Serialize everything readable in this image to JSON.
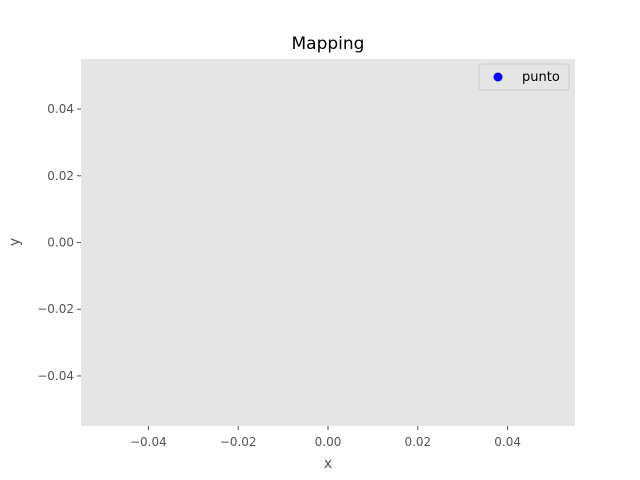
{
  "chart_data": {
    "type": "scatter",
    "title": "Mapping",
    "xlabel": "x",
    "ylabel": "y",
    "xlim": [
      -0.055,
      0.055
    ],
    "ylim": [
      -0.055,
      0.055
    ],
    "xticks": [
      -0.04,
      -0.02,
      0.0,
      0.02,
      0.04
    ],
    "xtick_labels": [
      "−0.04",
      "−0.02",
      "0.00",
      "0.02",
      "0.04"
    ],
    "yticks": [
      -0.04,
      -0.02,
      0.0,
      0.02,
      0.04
    ],
    "ytick_labels": [
      "−0.04",
      "−0.02",
      "0.00",
      "0.02",
      "0.04"
    ],
    "grid": false,
    "legend_position": "top-right",
    "series": [
      {
        "name": "punto",
        "color": "#0000ff",
        "x": [],
        "y": []
      }
    ],
    "colors": {
      "plot_background": "#e5e5e5",
      "figure_background": "#ffffff",
      "tick_text": "#555555"
    }
  }
}
